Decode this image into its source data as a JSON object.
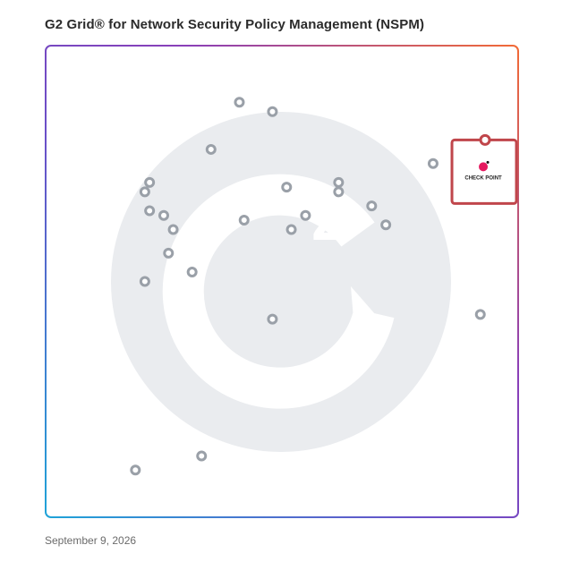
{
  "title": "G2 Grid® for Network Security Policy Management (NSPM)",
  "date": "September 9, 2026",
  "colors": {
    "frame_blue": "#2e7de0",
    "frame_purple": "#7b3fc4",
    "frame_orange": "#f0603a",
    "highlight": "#c0464b",
    "marker": "#9aa0a8",
    "watermark": "#eaecef"
  },
  "chart_data": {
    "type": "scatter",
    "title": "G2 Grid® for Network Security Policy Management (NSPM)",
    "xlabel": "",
    "ylabel": "",
    "xlim": [
      0,
      100
    ],
    "ylim": [
      0,
      100
    ],
    "quadrant_split": {
      "x": 50,
      "y": 50
    },
    "grid": false,
    "legend": "none",
    "points": [
      {
        "x": 41,
        "y": 88
      },
      {
        "x": 48,
        "y": 86
      },
      {
        "x": 35,
        "y": 78
      },
      {
        "x": 22,
        "y": 71
      },
      {
        "x": 21,
        "y": 69
      },
      {
        "x": 22,
        "y": 65
      },
      {
        "x": 25,
        "y": 64
      },
      {
        "x": 27,
        "y": 61
      },
      {
        "x": 42,
        "y": 63
      },
      {
        "x": 51,
        "y": 70
      },
      {
        "x": 62,
        "y": 71
      },
      {
        "x": 62,
        "y": 69
      },
      {
        "x": 69,
        "y": 66
      },
      {
        "x": 72,
        "y": 62
      },
      {
        "x": 55,
        "y": 64
      },
      {
        "x": 52,
        "y": 61
      },
      {
        "x": 82,
        "y": 75
      },
      {
        "x": 26,
        "y": 56
      },
      {
        "x": 31,
        "y": 52
      },
      {
        "x": 21,
        "y": 50
      },
      {
        "x": 48,
        "y": 42
      },
      {
        "x": 92,
        "y": 43
      },
      {
        "x": 33,
        "y": 13
      },
      {
        "x": 19,
        "y": 10
      }
    ],
    "highlighted": {
      "x": 93,
      "y": 80,
      "label": "CHECK POINT"
    }
  }
}
